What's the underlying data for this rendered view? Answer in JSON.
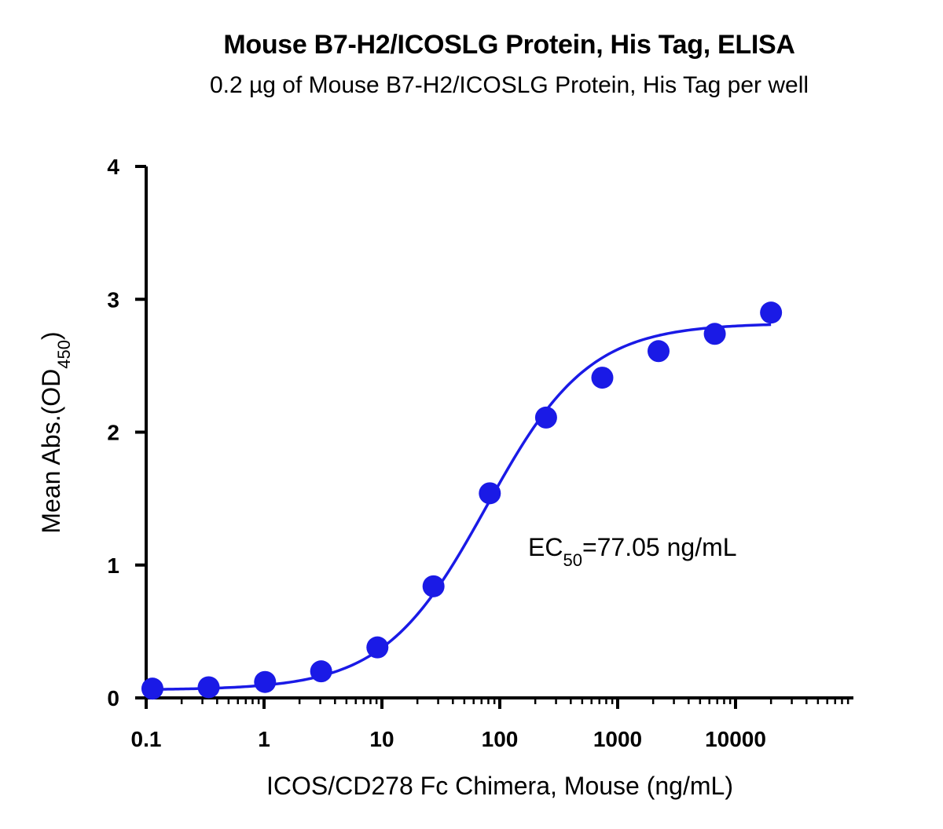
{
  "chart_data": {
    "type": "scatter",
    "title": "Mouse B7-H2/ICOSLG Protein, His Tag, ELISA",
    "subtitle": "0.2 µg of Mouse B7-H2/ICOSLG Protein, His Tag per well",
    "xlabel": "ICOS/CD278 Fc Chimera, Mouse (ng/mL)",
    "ylabel": {
      "main": "Mean Abs.(OD",
      "subscript": "450",
      "close": ")"
    },
    "x_scale": "log",
    "xlim": [
      0.1,
      100000
    ],
    "ylim": [
      0,
      4
    ],
    "x_ticks": [
      0.1,
      1,
      10,
      100,
      1000,
      10000
    ],
    "x_tick_labels": [
      "0.1",
      "1",
      "10",
      "100",
      "1000",
      "10000"
    ],
    "y_ticks": [
      0,
      1,
      2,
      3,
      4
    ],
    "y_tick_labels": [
      "0",
      "1",
      "2",
      "3",
      "4"
    ],
    "grid": false,
    "color": "#1a1ae6",
    "series": [
      {
        "x": [
          0.113,
          0.339,
          1.02,
          3.05,
          9.16,
          27.4,
          82.3,
          247,
          741,
          2222,
          6667,
          20000
        ],
        "y": [
          0.07,
          0.08,
          0.12,
          0.2,
          0.38,
          0.84,
          1.54,
          2.11,
          2.41,
          2.61,
          2.74,
          2.9
        ]
      }
    ],
    "fit_curve": {
      "model": "4PL",
      "bottom": 0.06,
      "top": 2.82,
      "ec50": 77.05,
      "hill": 1.0
    },
    "annotation": {
      "prefix": "EC",
      "subscript": "50",
      "suffix": "=77.05 ng/mL"
    }
  }
}
